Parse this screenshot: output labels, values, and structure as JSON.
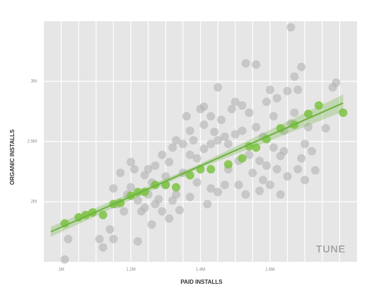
{
  "chart_data": {
    "type": "scatter",
    "x_label": "PAID INSTALLS",
    "y_label": "ORGANIC INSTALLS",
    "logo": "TUNE",
    "xlim": [
      0.95,
      1.85
    ],
    "ylim": [
      1.5,
      3.5
    ],
    "xticks": [
      {
        "value": 1,
        "label": "1M"
      },
      {
        "value": 1.2,
        "label": "1.2M"
      },
      {
        "value": 1.4,
        "label": "1.4M"
      },
      {
        "value": 1.6,
        "label": "1.6M"
      }
    ],
    "yticks": [
      {
        "value": 2,
        "label": "2M"
      },
      {
        "value": 2.5,
        "label": "2.5M"
      },
      {
        "value": 3,
        "label": "3M"
      }
    ],
    "x_gridlines": [
      1,
      1.05,
      1.1,
      1.15,
      1.2,
      1.25,
      1.3,
      1.35,
      1.4,
      1.45,
      1.5,
      1.55,
      1.6,
      1.65,
      1.7,
      1.75,
      1.8
    ],
    "grid": true,
    "background": "#e6e6e6",
    "series": [
      {
        "color": "#b3b3b3",
        "x": [
          1.01,
          1.02,
          1.11,
          1.12,
          1.14,
          1.15,
          1.15,
          1.16,
          1.18,
          1.17,
          1.19,
          1.2,
          1.2,
          1.21,
          1.22,
          1.23,
          1.22,
          1.24,
          1.24,
          1.25,
          1.25,
          1.26,
          1.26,
          1.27,
          1.27,
          1.28,
          1.29,
          1.29,
          1.3,
          1.3,
          1.31,
          1.31,
          1.32,
          1.32,
          1.33,
          1.33,
          1.34,
          1.35,
          1.35,
          1.36,
          1.37,
          1.37,
          1.37,
          1.38,
          1.39,
          1.39,
          1.4,
          1.41,
          1.41,
          1.41,
          1.42,
          1.43,
          1.43,
          1.43,
          1.44,
          1.45,
          1.45,
          1.45,
          1.46,
          1.47,
          1.47,
          1.48,
          1.48,
          1.49,
          1.5,
          1.5,
          1.51,
          1.51,
          1.52,
          1.52,
          1.53,
          1.53,
          1.54,
          1.54,
          1.55,
          1.56,
          1.56,
          1.57,
          1.57,
          1.58,
          1.58,
          1.59,
          1.59,
          1.6,
          1.6,
          1.61,
          1.61,
          1.62,
          1.62,
          1.63,
          1.63,
          1.64,
          1.64,
          1.65,
          1.65,
          1.66,
          1.66,
          1.67,
          1.67,
          1.68,
          1.68,
          1.69,
          1.69,
          1.7,
          1.7,
          1.71,
          1.72,
          1.73,
          1.76,
          1.78,
          1.79
        ],
        "values": [
          1.52,
          1.69,
          1.69,
          1.62,
          1.77,
          1.69,
          2.11,
          1.98,
          1.92,
          2.24,
          2.06,
          2.33,
          2.12,
          2.27,
          2.01,
          1.92,
          1.67,
          1.95,
          2.22,
          2.27,
          2.06,
          2.16,
          1.81,
          2.3,
          1.98,
          2.02,
          2.39,
          1.92,
          2.21,
          2.14,
          1.86,
          2.33,
          2.01,
          2.45,
          2.51,
          2.06,
          1.93,
          2.24,
          2.48,
          2.71,
          2.59,
          2.04,
          2.39,
          2.51,
          2.16,
          2.36,
          2.77,
          2.64,
          2.44,
          2.79,
          1.98,
          2.11,
          2.48,
          2.71,
          2.58,
          2.95,
          2.51,
          2.08,
          2.68,
          2.54,
          2.14,
          2.27,
          2.48,
          2.77,
          2.56,
          2.83,
          2.14,
          2.34,
          2.59,
          2.8,
          2.06,
          3.15,
          2.39,
          2.74,
          2.24,
          2.62,
          3.14,
          2.09,
          2.34,
          2.54,
          2.18,
          2.83,
          2.3,
          2.93,
          2.14,
          2.45,
          2.71,
          2.27,
          2.86,
          2.38,
          2.06,
          2.59,
          2.42,
          2.92,
          2.21,
          2.65,
          3.45,
          2.74,
          3.04,
          2.27,
          2.93,
          2.36,
          3.12,
          2.48,
          2.18,
          2.62,
          2.42,
          2.26,
          2.61,
          2.95,
          2.99
        ]
      },
      {
        "color": "#7dc242",
        "x": [
          1.01,
          1.05,
          1.07,
          1.09,
          1.12,
          1.15,
          1.17,
          1.2,
          1.22,
          1.24,
          1.27,
          1.3,
          1.33,
          1.37,
          1.4,
          1.43,
          1.48,
          1.52,
          1.54,
          1.56,
          1.59,
          1.63,
          1.67,
          1.71,
          1.74,
          1.81
        ],
        "values": [
          1.82,
          1.87,
          1.89,
          1.91,
          1.89,
          1.98,
          1.99,
          2.05,
          2.08,
          2.08,
          2.14,
          2.14,
          2.12,
          2.22,
          2.27,
          2.27,
          2.31,
          2.36,
          2.46,
          2.45,
          2.52,
          2.61,
          2.64,
          2.73,
          2.8,
          2.74
        ]
      }
    ],
    "trend": {
      "color": "#6db33f",
      "x": [
        0.97,
        1.81
      ],
      "values": [
        1.75,
        2.82
      ]
    }
  }
}
